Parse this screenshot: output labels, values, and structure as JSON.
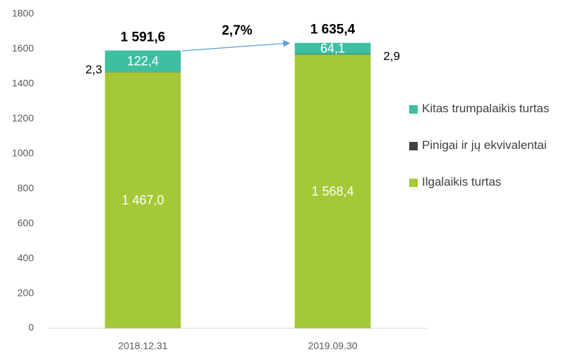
{
  "chart_data": {
    "type": "stacked_bar",
    "categories": [
      "2018.12.31",
      "2019.09.30"
    ],
    "series": [
      {
        "name": "Ilgalaikis turtas",
        "color": "#a5c836",
        "values": [
          1467.0,
          1568.4
        ],
        "value_labels": [
          "1 467,0",
          "1 568,4"
        ]
      },
      {
        "name": "Pinigai ir jų ekvivalentai",
        "color": "#404040",
        "values": [
          2.3,
          2.9
        ],
        "value_labels": [
          "2,3",
          "2,9"
        ]
      },
      {
        "name": "Kitas trumpalaikis turtas",
        "color": "#3dbfa0",
        "values": [
          122.4,
          64.1
        ],
        "value_labels": [
          "122,4",
          "64,1"
        ]
      }
    ],
    "totals": [
      1591.6,
      1635.4
    ],
    "total_labels": [
      "1 591,6",
      "1 635,4"
    ],
    "annotation": "2,7%",
    "ylim": [
      0,
      1800
    ],
    "yticks": [
      0,
      200,
      400,
      600,
      800,
      1000,
      1200,
      1400,
      1600,
      1800
    ],
    "grid": false,
    "legend": "right"
  }
}
